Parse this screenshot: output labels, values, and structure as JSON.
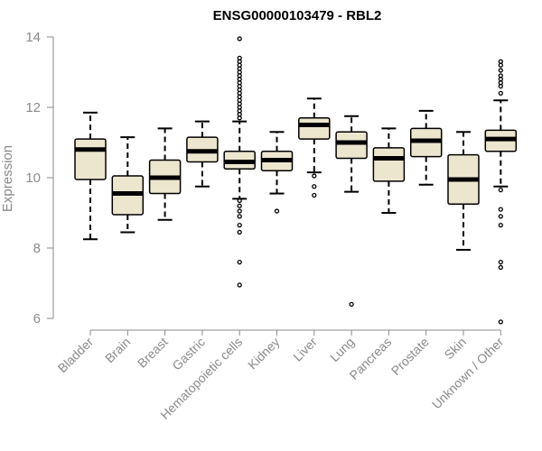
{
  "chart_data": {
    "type": "boxplot",
    "title": "ENSG00000103479 - RBL2",
    "xlabel": "",
    "ylabel": "Expression",
    "ylim": [
      6,
      14
    ],
    "yticks": [
      6,
      8,
      10,
      12,
      14
    ],
    "box_fill": "#ede6cf",
    "categories": [
      "Bladder",
      "Brain",
      "Breast",
      "Gastric",
      "Hematopoietic cells",
      "Kidney",
      "Liver",
      "Lung",
      "Pancreas",
      "Prostate",
      "Skin",
      "Unknown / Other"
    ],
    "boxes": [
      {
        "q1": 9.95,
        "median": 10.8,
        "q3": 11.1,
        "whisker_low": 8.25,
        "whisker_high": 11.85,
        "outliers": []
      },
      {
        "q1": 8.95,
        "median": 9.55,
        "q3": 10.05,
        "whisker_low": 8.45,
        "whisker_high": 11.15,
        "outliers": []
      },
      {
        "q1": 9.55,
        "median": 10.0,
        "q3": 10.5,
        "whisker_low": 8.8,
        "whisker_high": 11.4,
        "outliers": []
      },
      {
        "q1": 10.45,
        "median": 10.75,
        "q3": 11.15,
        "whisker_low": 9.75,
        "whisker_high": 11.6,
        "outliers": []
      },
      {
        "q1": 10.25,
        "median": 10.45,
        "q3": 10.75,
        "whisker_low": 9.4,
        "whisker_high": 11.6,
        "outliers": [
          13.95,
          13.4,
          13.3,
          13.2,
          13.1,
          13.0,
          12.9,
          12.8,
          12.7,
          12.6,
          12.5,
          12.4,
          12.3,
          12.2,
          12.1,
          12.0,
          11.9,
          11.8,
          11.7,
          9.35,
          9.2,
          9.05,
          8.9,
          8.65,
          8.45,
          7.6,
          6.95
        ]
      },
      {
        "q1": 10.2,
        "median": 10.5,
        "q3": 10.75,
        "whisker_low": 9.55,
        "whisker_high": 11.3,
        "outliers": [
          9.05
        ]
      },
      {
        "q1": 11.1,
        "median": 11.5,
        "q3": 11.7,
        "whisker_low": 10.15,
        "whisker_high": 12.25,
        "outliers": [
          10.05,
          9.75,
          9.5
        ]
      },
      {
        "q1": 10.55,
        "median": 11.0,
        "q3": 11.3,
        "whisker_low": 9.6,
        "whisker_high": 11.75,
        "outliers": [
          6.4
        ]
      },
      {
        "q1": 9.9,
        "median": 10.55,
        "q3": 10.85,
        "whisker_low": 9.0,
        "whisker_high": 11.4,
        "outliers": []
      },
      {
        "q1": 10.6,
        "median": 11.05,
        "q3": 11.4,
        "whisker_low": 9.8,
        "whisker_high": 11.9,
        "outliers": []
      },
      {
        "q1": 9.25,
        "median": 9.95,
        "q3": 10.65,
        "whisker_low": 7.95,
        "whisker_high": 11.3,
        "outliers": []
      },
      {
        "q1": 10.75,
        "median": 11.1,
        "q3": 11.35,
        "whisker_low": 9.75,
        "whisker_high": 12.2,
        "outliers": [
          13.3,
          13.2,
          13.05,
          12.9,
          12.8,
          12.7,
          12.6,
          12.4,
          9.65,
          9.1,
          8.9,
          8.65,
          7.6,
          7.45,
          5.9
        ]
      }
    ]
  }
}
